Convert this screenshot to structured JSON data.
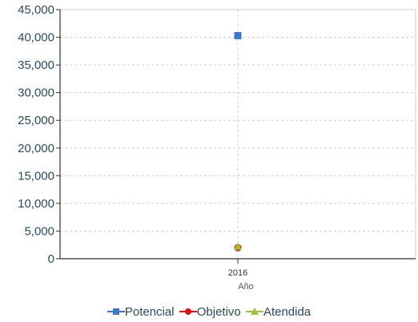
{
  "chart_data": {
    "type": "line",
    "categories": [
      "2016"
    ],
    "xlabel": "Año",
    "ylabel": "",
    "ylim": [
      0,
      45000
    ],
    "yticks": [
      "0",
      "5,000",
      "10,000",
      "15,000",
      "20,000",
      "25,000",
      "30,000",
      "35,000",
      "40,000",
      "45,000"
    ],
    "grid": true,
    "legend_position": "bottom",
    "series": [
      {
        "name": "Potencial",
        "values": [
          40300
        ],
        "color": "#3a78c9",
        "marker": "square"
      },
      {
        "name": "Objetivo",
        "values": [
          2000
        ],
        "color": "#e01010",
        "marker": "circle"
      },
      {
        "name": "Atendida",
        "values": [
          2200
        ],
        "color": "#9bc43a",
        "marker": "triangle"
      }
    ]
  }
}
